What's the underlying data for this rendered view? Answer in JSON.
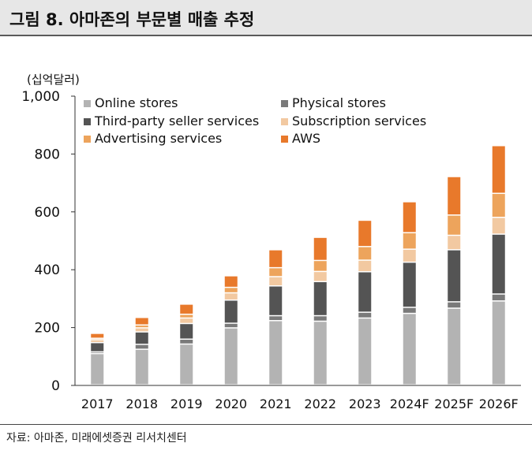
{
  "header": {
    "title": "그림 8. 아마존의 부문별 매출 추정"
  },
  "footer": {
    "source": "자료: 아마존, 미래에셋증권 리서치센터"
  },
  "chart_data": {
    "type": "bar",
    "stacked": true,
    "title": "그림 8. 아마존의 부문별 매출 추정",
    "ylabel": "(십억달러)",
    "xlabel": "",
    "ylim": [
      0,
      1000
    ],
    "yticks": [
      0,
      200,
      400,
      600,
      800,
      1000
    ],
    "ytick_labels": [
      "0",
      "200",
      "400",
      "600",
      "800",
      "1,000"
    ],
    "grid": false,
    "legend_position": "top-left",
    "categories": [
      "2017",
      "2018",
      "2019",
      "2020",
      "2021",
      "2022",
      "2023",
      "2024F",
      "2025F",
      "2026F"
    ],
    "series": [
      {
        "name": "Online stores",
        "color": "#b3b3b3",
        "values": [
          108,
          123,
          141,
          197,
          222,
          220,
          231,
          247,
          265,
          290
        ]
      },
      {
        "name": "Physical stores",
        "color": "#7a7a7a",
        "values": [
          6,
          17,
          17,
          16,
          17,
          19,
          20,
          21,
          22,
          24
        ]
      },
      {
        "name": "Third-party seller services",
        "color": "#545454",
        "values": [
          32,
          43,
          54,
          80,
          103,
          118,
          140,
          156,
          180,
          207
        ]
      },
      {
        "name": "Subscription services",
        "color": "#f2c9a1",
        "values": [
          10,
          14,
          19,
          25,
          32,
          35,
          40,
          45,
          50,
          58
        ]
      },
      {
        "name": "Advertising services",
        "color": "#eda45c",
        "values": [
          5,
          10,
          13,
          19,
          31,
          38,
          47,
          57,
          70,
          83
        ]
      },
      {
        "name": "AWS",
        "color": "#e8792b",
        "values": [
          17,
          26,
          35,
          40,
          62,
          80,
          91,
          107,
          133,
          165
        ]
      }
    ]
  }
}
